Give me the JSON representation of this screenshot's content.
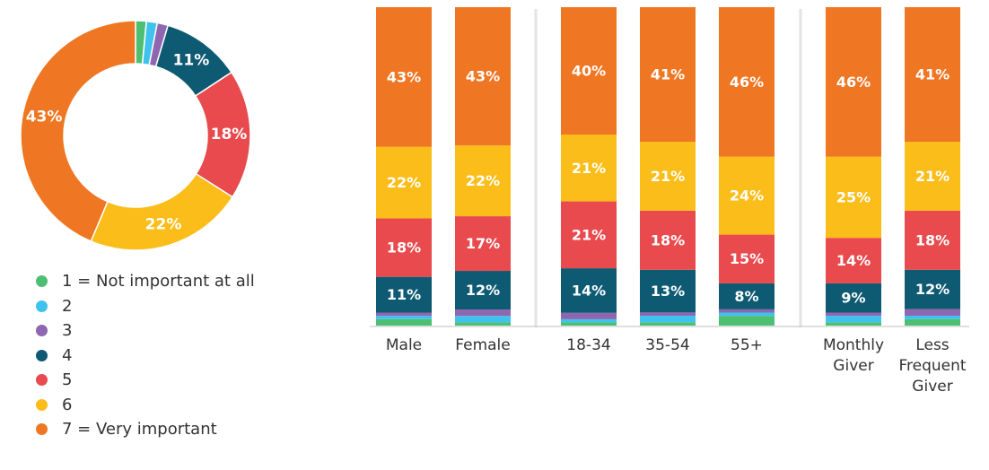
{
  "chart_data": [
    {
      "type": "pie",
      "subtype": "donut",
      "categories": [
        "1 = Not important at all",
        "2",
        "3",
        "4",
        "5",
        "6",
        "7 = Very important"
      ],
      "values": [
        1.5,
        1.5,
        1.5,
        11,
        18,
        22,
        43
      ],
      "labels": [
        "",
        "",
        "",
        "11%",
        "18%",
        "22%",
        "43%"
      ]
    },
    {
      "type": "bar",
      "stacked": true,
      "categories": [
        "Male",
        "Female",
        "18-34",
        "35-54",
        "55+",
        "Monthly Giver",
        "Less Frequent Giver"
      ],
      "category_lines": [
        [
          "Male"
        ],
        [
          "Female"
        ],
        [
          "18-34"
        ],
        [
          "35-54"
        ],
        [
          "55+"
        ],
        [
          "Monthly",
          "Giver"
        ],
        [
          "Less",
          "Frequent",
          "Giver"
        ]
      ],
      "groups": [
        [
          0,
          1
        ],
        [
          2,
          3,
          4
        ],
        [
          5,
          6
        ]
      ],
      "series": [
        {
          "name": "1 = Not important at all",
          "values": [
            2,
            1,
            1,
            1,
            3,
            1,
            2
          ],
          "labels": [
            "",
            "",
            "",
            "",
            "",
            "",
            ""
          ]
        },
        {
          "name": "2",
          "values": [
            1,
            2,
            1,
            2,
            1,
            2,
            1
          ],
          "labels": [
            "",
            "",
            "",
            "",
            "",
            "",
            ""
          ]
        },
        {
          "name": "3",
          "values": [
            1,
            2,
            2,
            1,
            1,
            1,
            2
          ],
          "labels": [
            "",
            "",
            "",
            "",
            "",
            "",
            ""
          ]
        },
        {
          "name": "4",
          "values": [
            11,
            12,
            14,
            13,
            8,
            9,
            12
          ],
          "labels": [
            "11%",
            "12%",
            "14%",
            "13%",
            "8%",
            "9%",
            "12%"
          ]
        },
        {
          "name": "5",
          "values": [
            18,
            17,
            21,
            18,
            15,
            14,
            18
          ],
          "labels": [
            "18%",
            "17%",
            "21%",
            "18%",
            "15%",
            "14%",
            "18%"
          ]
        },
        {
          "name": "6",
          "values": [
            22,
            22,
            21,
            21,
            24,
            25,
            21
          ],
          "labels": [
            "22%",
            "22%",
            "21%",
            "21%",
            "24%",
            "25%",
            "21%"
          ]
        },
        {
          "name": "7 = Very important",
          "values": [
            43,
            43,
            40,
            41,
            46,
            46,
            41
          ],
          "labels": [
            "43%",
            "43%",
            "40%",
            "41%",
            "46%",
            "46%",
            "41%"
          ]
        }
      ]
    }
  ],
  "legend": {
    "items": [
      {
        "label": "1 = Not important at all",
        "color": "#4dbf73"
      },
      {
        "label": "2",
        "color": "#3fc3ee"
      },
      {
        "label": "3",
        "color": "#8e67b0"
      },
      {
        "label": "4",
        "color": "#0e5a73"
      },
      {
        "label": "5",
        "color": "#e84a4d"
      },
      {
        "label": "6",
        "color": "#fbbd19"
      },
      {
        "label": "7 = Very important",
        "color": "#ef7622"
      }
    ]
  }
}
